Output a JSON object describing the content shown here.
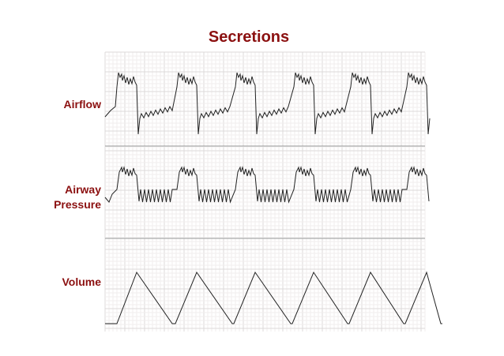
{
  "title": "Secretions",
  "panels": [
    {
      "label": "Airflow"
    },
    {
      "label": "Airway Pressure"
    },
    {
      "label": "Volume"
    }
  ]
}
